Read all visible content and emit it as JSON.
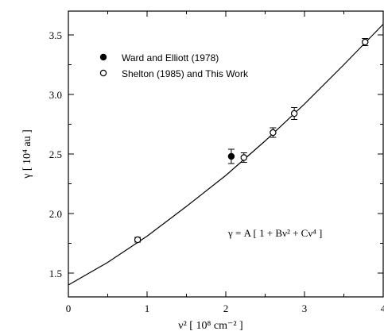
{
  "chart_data": {
    "type": "scatter",
    "xlabel": "ν² [ 10⁸ cm⁻² ]",
    "ylabel": "γ [ 10⁴ au ]",
    "xlim": [
      0,
      4
    ],
    "ylim": [
      1.3,
      3.7
    ],
    "x_ticks": [
      "0",
      "1",
      "2",
      "3",
      "4"
    ],
    "y_ticks": [
      "1.5",
      "2.0",
      "2.5",
      "3.0",
      "3.5"
    ],
    "legend_placement": "top-left",
    "equation": "γ = A [ 1 + Bν² + Cν⁴ ]",
    "series": [
      {
        "name": "Ward and Elliott (1978)",
        "marker": "filled-circle",
        "points": [
          {
            "x": 2.07,
            "y": 2.48,
            "err": 0.06
          }
        ]
      },
      {
        "name": "Shelton (1985) and This Work",
        "marker": "open-circle",
        "points": [
          {
            "x": 0.88,
            "y": 1.78,
            "err": 0.02
          },
          {
            "x": 2.23,
            "y": 2.47,
            "err": 0.04
          },
          {
            "x": 2.6,
            "y": 2.68,
            "err": 0.04
          },
          {
            "x": 2.87,
            "y": 2.84,
            "err": 0.05
          },
          {
            "x": 3.77,
            "y": 3.44,
            "err": 0.03
          }
        ]
      }
    ],
    "fit": {
      "type": "line",
      "x": [
        0,
        0.5,
        1.0,
        1.5,
        2.0,
        2.5,
        3.0,
        3.5,
        4.0
      ],
      "y": [
        1.4,
        1.59,
        1.81,
        2.06,
        2.32,
        2.61,
        2.92,
        3.25,
        3.59
      ]
    }
  }
}
